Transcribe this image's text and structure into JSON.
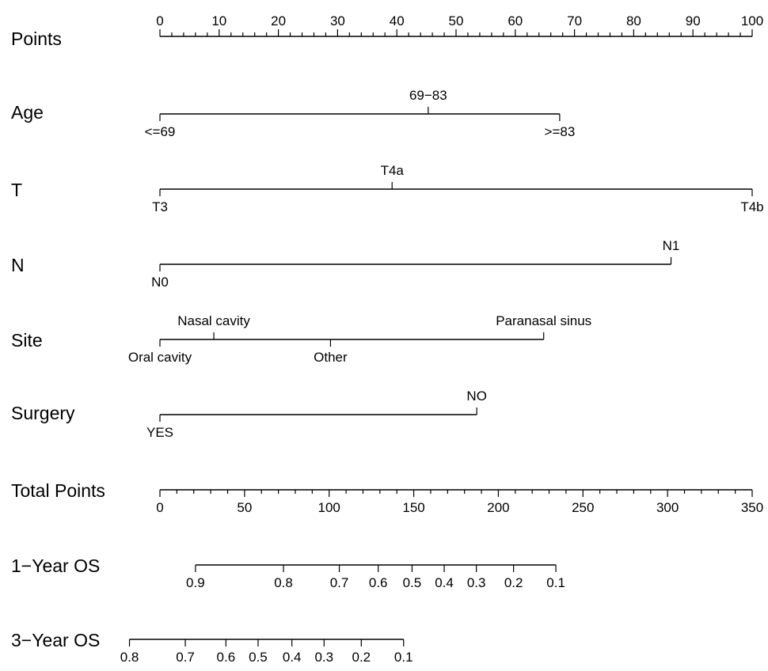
{
  "chart_data": {
    "type": "nomogram",
    "rows": [
      {
        "id": "points",
        "label": "Points",
        "kind": "scale",
        "min": 0,
        "max": 100,
        "major_step": 10,
        "minor_step": 2,
        "tick_labels": [
          "0",
          "10",
          "20",
          "30",
          "40",
          "50",
          "60",
          "70",
          "80",
          "90",
          "100"
        ]
      },
      {
        "id": "age",
        "label": "Age",
        "kind": "factor",
        "levels": [
          {
            "label": "<=69",
            "points": 0,
            "label_side": "below"
          },
          {
            "label": "69−83",
            "points": 45.3,
            "label_side": "above"
          },
          {
            "label": ">=83",
            "points": 67.5,
            "label_side": "below"
          }
        ]
      },
      {
        "id": "t",
        "label": "T",
        "kind": "factor",
        "levels": [
          {
            "label": "T3",
            "points": 0,
            "label_side": "below"
          },
          {
            "label": "T4a",
            "points": 39.2,
            "label_side": "above"
          },
          {
            "label": "T4b",
            "points": 100,
            "label_side": "below"
          }
        ]
      },
      {
        "id": "n",
        "label": "N",
        "kind": "factor",
        "levels": [
          {
            "label": "N0",
            "points": 0,
            "label_side": "below"
          },
          {
            "label": "N1",
            "points": 86.3,
            "label_side": "above"
          }
        ]
      },
      {
        "id": "site",
        "label": "Site",
        "kind": "factor",
        "levels": [
          {
            "label": "Oral cavity",
            "points": 0,
            "label_side": "below"
          },
          {
            "label": "Nasal cavity",
            "points": 9.1,
            "label_side": "above"
          },
          {
            "label": "Other",
            "points": 28.8,
            "label_side": "below"
          },
          {
            "label": "Paranasal sinus",
            "points": 64.8,
            "label_side": "above"
          }
        ]
      },
      {
        "id": "surgery",
        "label": "Surgery",
        "kind": "factor",
        "levels": [
          {
            "label": "YES",
            "points": 0,
            "label_side": "below"
          },
          {
            "label": "NO",
            "points": 53.5,
            "label_side": "above"
          }
        ]
      },
      {
        "id": "total",
        "label": "Total Points",
        "kind": "scale",
        "min": 0,
        "max": 350,
        "major_step": 50,
        "minor_step": 10,
        "tick_labels": [
          "0",
          "50",
          "100",
          "150",
          "200",
          "250",
          "300",
          "350"
        ]
      },
      {
        "id": "os1",
        "label": "1−Year OS",
        "kind": "probability",
        "ticks": [
          {
            "label": "0.9",
            "total_points": 21
          },
          {
            "label": "0.8",
            "total_points": 73
          },
          {
            "label": "0.7",
            "total_points": 106
          },
          {
            "label": "0.6",
            "total_points": 129
          },
          {
            "label": "0.5",
            "total_points": 149
          },
          {
            "label": "0.4",
            "total_points": 168
          },
          {
            "label": "0.3",
            "total_points": 187
          },
          {
            "label": "0.2",
            "total_points": 209
          },
          {
            "label": "0.1",
            "total_points": 234
          }
        ]
      },
      {
        "id": "os3",
        "label": "3−Year OS",
        "kind": "probability",
        "ticks": [
          {
            "label": "0.8",
            "total_points": -18
          },
          {
            "label": "0.7",
            "total_points": 15
          },
          {
            "label": "0.6",
            "total_points": 39
          },
          {
            "label": "0.5",
            "total_points": 58
          },
          {
            "label": "0.4",
            "total_points": 78
          },
          {
            "label": "0.3",
            "total_points": 97
          },
          {
            "label": "0.2",
            "total_points": 119
          },
          {
            "label": "0.1",
            "total_points": 144
          }
        ]
      }
    ]
  }
}
